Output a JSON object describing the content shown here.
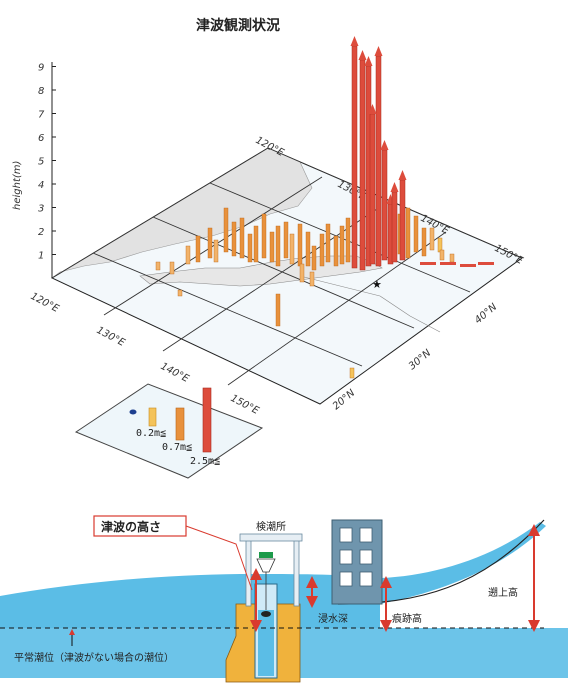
{
  "title": "津波観測状況",
  "map3d": {
    "y_axis_label": "height(m)",
    "y_ticks": [
      "1",
      "2",
      "3",
      "4",
      "5",
      "6",
      "7",
      "8",
      "9"
    ],
    "lon_labels_front": [
      "120°E",
      "130°E",
      "140°E",
      "150°E"
    ],
    "lon_labels_back": [
      "120°E",
      "130°E",
      "140°E",
      "150°E"
    ],
    "lat_labels": [
      "20°N",
      "30°N",
      "40°N"
    ],
    "colors": {
      "orange_low": "#f2b36a",
      "orange_mid": "#e8913c",
      "red_high": "#dd4c3c",
      "land": "#e2e2e2",
      "sea": "#f3f8fb",
      "grid": "#333333"
    }
  },
  "legend": {
    "items": [
      {
        "label": "0.2m≦",
        "color": "#f4c35a"
      },
      {
        "label": "0.7m≦",
        "color": "#e8913c"
      },
      {
        "label": "2.5m≦",
        "color": "#dd4c3c"
      }
    ],
    "dot_color": "#1d3f8f"
  },
  "diagram": {
    "callout": "津波の高さ",
    "station_label": "検潮所",
    "inundation_label": "浸水深",
    "trace_label": "痕跡高",
    "runup_label": "遡上高",
    "baseline_label": "平常潮位（津波がない場合の潮位）",
    "colors": {
      "water": "#5bbde6",
      "ground": "#f0b23c",
      "arrow": "#d93a2e",
      "building": "#6f95ad"
    }
  }
}
